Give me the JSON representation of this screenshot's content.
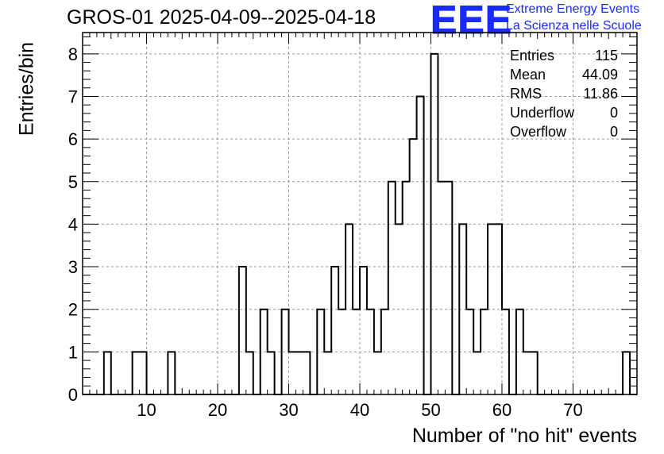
{
  "header": {
    "title": "GROS-01 2025-04-09--2025-04-18",
    "logo_text": "EEE",
    "logo_line1": "Extreme Energy Events",
    "logo_line2": "La Scienza nelle Scuole"
  },
  "stats": [
    {
      "label": "Entries",
      "value": "115"
    },
    {
      "label": "Mean",
      "value": "44.09"
    },
    {
      "label": "RMS",
      "value": "11.86"
    },
    {
      "label": "Underflow",
      "value": "0"
    },
    {
      "label": "Overflow",
      "value": "0"
    }
  ],
  "chart_data": {
    "type": "histogram",
    "xlabel": "Number of \"no hit\" events",
    "ylabel": "Entries/bin",
    "xlim": [
      1,
      79
    ],
    "ylim": [
      0,
      8.5
    ],
    "bin_width": 1,
    "x_ticks": [
      10,
      20,
      30,
      40,
      50,
      60,
      70
    ],
    "y_ticks": [
      0,
      1,
      2,
      3,
      4,
      5,
      6,
      7,
      8
    ],
    "grid": true,
    "bins": [
      {
        "x": 4,
        "count": 1
      },
      {
        "x": 8,
        "count": 1
      },
      {
        "x": 9,
        "count": 1
      },
      {
        "x": 13,
        "count": 1
      },
      {
        "x": 23,
        "count": 3
      },
      {
        "x": 24,
        "count": 1
      },
      {
        "x": 26,
        "count": 2
      },
      {
        "x": 27,
        "count": 1
      },
      {
        "x": 29,
        "count": 2
      },
      {
        "x": 30,
        "count": 1
      },
      {
        "x": 31,
        "count": 1
      },
      {
        "x": 32,
        "count": 1
      },
      {
        "x": 34,
        "count": 2
      },
      {
        "x": 35,
        "count": 1
      },
      {
        "x": 36,
        "count": 3
      },
      {
        "x": 37,
        "count": 2
      },
      {
        "x": 38,
        "count": 4
      },
      {
        "x": 39,
        "count": 2
      },
      {
        "x": 40,
        "count": 3
      },
      {
        "x": 41,
        "count": 2
      },
      {
        "x": 42,
        "count": 1
      },
      {
        "x": 43,
        "count": 2
      },
      {
        "x": 44,
        "count": 5
      },
      {
        "x": 45,
        "count": 4
      },
      {
        "x": 46,
        "count": 5
      },
      {
        "x": 47,
        "count": 6
      },
      {
        "x": 48,
        "count": 7
      },
      {
        "x": 50,
        "count": 8
      },
      {
        "x": 51,
        "count": 5
      },
      {
        "x": 52,
        "count": 5
      },
      {
        "x": 54,
        "count": 4
      },
      {
        "x": 55,
        "count": 2
      },
      {
        "x": 56,
        "count": 1
      },
      {
        "x": 57,
        "count": 2
      },
      {
        "x": 58,
        "count": 4
      },
      {
        "x": 59,
        "count": 4
      },
      {
        "x": 60,
        "count": 2
      },
      {
        "x": 62,
        "count": 2
      },
      {
        "x": 63,
        "count": 1
      },
      {
        "x": 64,
        "count": 1
      },
      {
        "x": 77,
        "count": 1
      }
    ]
  }
}
